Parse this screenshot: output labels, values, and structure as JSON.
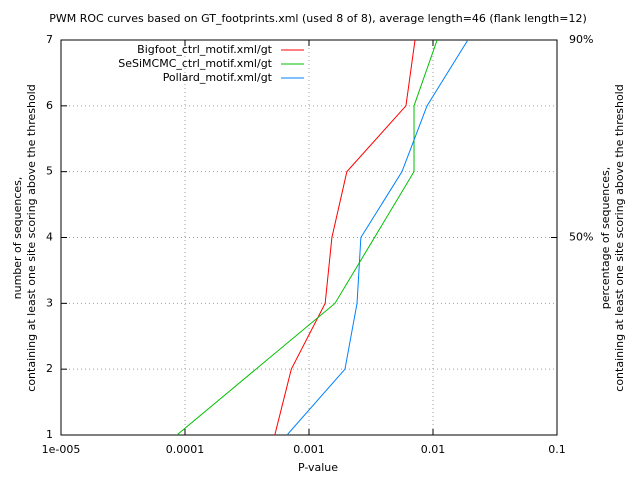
{
  "chart_data": {
    "type": "line",
    "title": "PWM ROC curves based on GT_footprints.xml (used 8 of 8), average length=46 (flank length=12)",
    "xlabel": "P-value",
    "ylabel": [
      "number of sequences,",
      "containing at least one site scoring above the threshold"
    ],
    "y2label": [
      "percentage of sequences,",
      "containing at least one site scoring above the threshold"
    ],
    "log_x": true,
    "grid": true,
    "legend": "top-right",
    "xlim": [
      1e-05,
      0.1
    ],
    "xticks": [
      {
        "value": 1e-05,
        "label": "1e-005"
      },
      0.0001,
      0.001,
      0.01,
      0.1
    ],
    "ylim": [
      1,
      7
    ],
    "yticks": [
      1,
      2,
      3,
      4,
      5,
      6,
      7
    ],
    "y2lim": [
      10,
      90
    ],
    "y2ticks": [
      {
        "value": 50,
        "label": "50%"
      },
      {
        "value": 90,
        "label": "90%"
      }
    ],
    "series": [
      {
        "name": "Bigfoot_ctrl_motif.xml/gt",
        "color": "#ff0000",
        "x": [
          0.00053,
          0.00072,
          0.00135,
          0.00153,
          0.00202,
          0.00605,
          0.00716
        ],
        "values": [
          1,
          2,
          3,
          4,
          5,
          6,
          7
        ]
      },
      {
        "name": "SeSiMCMC_ctrl_motif.xml/gt",
        "color": "#00c000",
        "x": [
          8.6e-05,
          0.00162,
          0.00703,
          0.00703,
          0.0108
        ],
        "values": [
          1,
          3,
          5,
          6,
          7
        ]
      },
      {
        "name": "Pollard_motif.xml/gt",
        "color": "#0080ff",
        "x": [
          0.000665,
          0.00195,
          0.00244,
          0.00262,
          0.00562,
          0.00895,
          0.0191
        ],
        "values": [
          1,
          2,
          3,
          4,
          5,
          6,
          7
        ]
      }
    ]
  }
}
